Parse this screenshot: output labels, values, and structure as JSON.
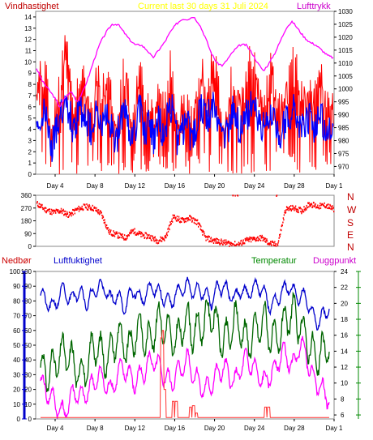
{
  "header": {
    "wind_label": "Vindhastighet",
    "title": "Current last 30 days 31 Juli 2024",
    "pressure_label": "Lufttrykk"
  },
  "middle": {
    "directions": [
      "N",
      "W",
      "S",
      "E",
      "N"
    ]
  },
  "bottom": {
    "rain_label": "Nedbør",
    "humidity_label": "Luftfuktighet",
    "temp_label": "Temperatur",
    "dew_label": "Duggpunkt"
  },
  "colors": {
    "wind": "#ff0000",
    "wind_avg": "#0000ff",
    "pressure": "#ff00ff",
    "direction": "#ff0000",
    "humidity": "#0000cc",
    "temperature": "#006600",
    "dewpoint": "#ff00ff",
    "rain": "#ff3333",
    "title": "#ffff00",
    "temp_axis": "#008800"
  },
  "chart_data": [
    {
      "type": "line",
      "title": "Current last 30 days 31 Juli 2024",
      "x_ticks": [
        "Day 4",
        "Day 8",
        "Day 12",
        "Day 16",
        "Day 20",
        "Day 24",
        "Day 28",
        "Day 1"
      ],
      "y_left_label": "Vindhastighet",
      "y_left_ticks": [
        0,
        1,
        2,
        3,
        4,
        5,
        6,
        7,
        8,
        9,
        10,
        11,
        12,
        13,
        14
      ],
      "ylim_left": [
        0,
        14.5
      ],
      "y_right_label": "Lufttrykk",
      "y_right_ticks": [
        970,
        975,
        980,
        985,
        990,
        995,
        1000,
        1005,
        1010,
        1015,
        1020,
        1025,
        1030
      ],
      "ylim_right": [
        967,
        1030
      ],
      "series": [
        {
          "name": "Vindhastighet",
          "axis": "left",
          "values": [
            11,
            10,
            12,
            4,
            8,
            10,
            13,
            11,
            7,
            12,
            10,
            9,
            7,
            12,
            9,
            11,
            8,
            6,
            10,
            11,
            7,
            8,
            12,
            7,
            9,
            6,
            10,
            7,
            11,
            12,
            5,
            8,
            9,
            6,
            9,
            12,
            10,
            11,
            13,
            7,
            6,
            9,
            12,
            8,
            10,
            11,
            14,
            10,
            8,
            9,
            12,
            9,
            7,
            10,
            11,
            12,
            8,
            9,
            10,
            8,
            11,
            9,
            7,
            11
          ]
        },
        {
          "name": "Lufttrykk",
          "axis": "right",
          "values": [
            1008,
            1003,
            1000,
            997,
            993,
            997,
            999,
            995,
            999,
            1005,
            1012,
            1018,
            1022,
            1025,
            1025,
            1022,
            1019,
            1017,
            1017,
            1015,
            1012,
            1015,
            1018,
            1022,
            1025,
            1027,
            1027,
            1028,
            1025,
            1020,
            1014,
            1010,
            1009,
            1012,
            1015,
            1017,
            1017,
            1014,
            1010,
            1007,
            1010,
            1014,
            1019,
            1024,
            1026,
            1023,
            1020,
            1018,
            1017,
            1015,
            1013,
            1012
          ]
        }
      ]
    },
    {
      "type": "scatter",
      "y_left_ticks": [
        0,
        90,
        180,
        270,
        360
      ],
      "ylim": [
        0,
        360
      ],
      "y_right_labels": [
        "N",
        "W",
        "S",
        "E",
        "N"
      ],
      "series": [
        {
          "name": "Wind direction",
          "values": [
            300,
            260,
            240,
            250,
            220,
            260,
            280,
            270,
            230,
            100,
            80,
            60,
            110,
            80,
            70,
            40,
            60,
            210,
            180,
            200,
            170,
            60,
            40,
            30,
            20,
            10,
            40,
            50,
            60,
            20,
            10,
            260,
            270,
            250,
            300,
            280,
            290,
            260
          ]
        }
      ]
    },
    {
      "type": "line",
      "x_ticks": [
        "Day 4",
        "Day 8",
        "Day 12",
        "Day 16",
        "Day 20",
        "Day 24",
        "Day 28",
        "Day 1"
      ],
      "y_left_ticks": [
        0,
        10,
        20,
        30,
        40,
        50,
        60,
        70,
        80,
        90,
        100
      ],
      "ylim_left": [
        0,
        100
      ],
      "y_right_ticks": [
        6,
        8,
        10,
        12,
        14,
        16,
        18,
        20,
        22,
        24
      ],
      "ylim_right": [
        5.5,
        24
      ],
      "series": [
        {
          "name": "Luftfuktighet",
          "axis": "left",
          "values": [
            85,
            80,
            75,
            82,
            88,
            80,
            86,
            85,
            78,
            86,
            90,
            88,
            80,
            85,
            75,
            82,
            88,
            80,
            85,
            90,
            86,
            82,
            78,
            85,
            88,
            90,
            86,
            88,
            84,
            80,
            88,
            90,
            85,
            82,
            88,
            84,
            88,
            90,
            85,
            76,
            80,
            86,
            90,
            86,
            82,
            84,
            72,
            65,
            70,
            75
          ]
        },
        {
          "name": "Temperatur",
          "axis": "right",
          "values": [
            12,
            11,
            12,
            13,
            14,
            13,
            12,
            11,
            12,
            15,
            14,
            13,
            14,
            16,
            15,
            14,
            16,
            17,
            15,
            16,
            18,
            17,
            16,
            15,
            17,
            18,
            16,
            17,
            18,
            19,
            17,
            15,
            16,
            18,
            17,
            15,
            16,
            17,
            18,
            16,
            15,
            17,
            18,
            19,
            17,
            16,
            14,
            13,
            14,
            15
          ]
        },
        {
          "name": "Duggpunkt",
          "axis": "right",
          "values": [
            10,
            9,
            8,
            7,
            6,
            8,
            9,
            8,
            9,
            10,
            11,
            10,
            9,
            11,
            12,
            11,
            10,
            11,
            12,
            13,
            12,
            11,
            10,
            11,
            12,
            13,
            11,
            10,
            9,
            10,
            11,
            12,
            11,
            10,
            12,
            13,
            12,
            11,
            10,
            11,
            12,
            14,
            13,
            12,
            15,
            14,
            11,
            10,
            9,
            8
          ]
        },
        {
          "name": "Nedbør",
          "axis": "left",
          "values": [
            0,
            0,
            0,
            0,
            0,
            0,
            0,
            0,
            0,
            0,
            0,
            0,
            0,
            0,
            0,
            0,
            0,
            0,
            0,
            0,
            0,
            0,
            0,
            0,
            0,
            0,
            0,
            0,
            0,
            0,
            0,
            0,
            0,
            0,
            0,
            0,
            0,
            0,
            0,
            0,
            0,
            0,
            0,
            0,
            0,
            0,
            0,
            0,
            0,
            0
          ]
        }
      ]
    }
  ]
}
